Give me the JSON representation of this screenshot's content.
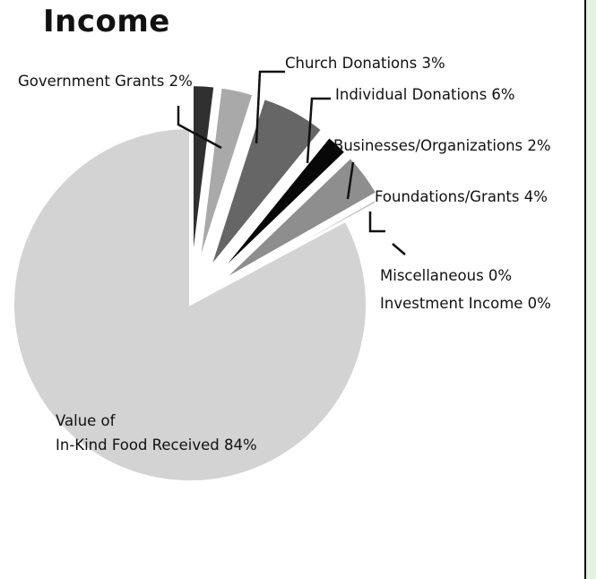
{
  "chart_data": {
    "type": "pie",
    "title": "Income",
    "slices": [
      {
        "label_lines": [
          "Government Grants 2%"
        ],
        "value": 2,
        "color": "#303030"
      },
      {
        "label_lines": [
          "Church Donations 3%"
        ],
        "value": 3,
        "color": "#a9a9a9"
      },
      {
        "label_lines": [
          "Individual Donations 6%"
        ],
        "value": 6,
        "color": "#666666"
      },
      {
        "label_lines": [
          "Businesses/Organizations 2%"
        ],
        "value": 2,
        "color": "#080808"
      },
      {
        "label_lines": [
          "Foundations/Grants 4%"
        ],
        "value": 4,
        "color": "#8e8e8e"
      },
      {
        "label_lines": [
          "Miscellaneous 0%"
        ],
        "value": 0.3,
        "color": "#bdbdbd"
      },
      {
        "label_lines": [
          "Investment Income 0%"
        ],
        "value": 0.1,
        "color": "#cfcfcf"
      },
      {
        "label_lines": [
          "Value of",
          "In-Kind Food Received 84%"
        ],
        "value": 84,
        "color": "#d3d3d3"
      }
    ]
  }
}
